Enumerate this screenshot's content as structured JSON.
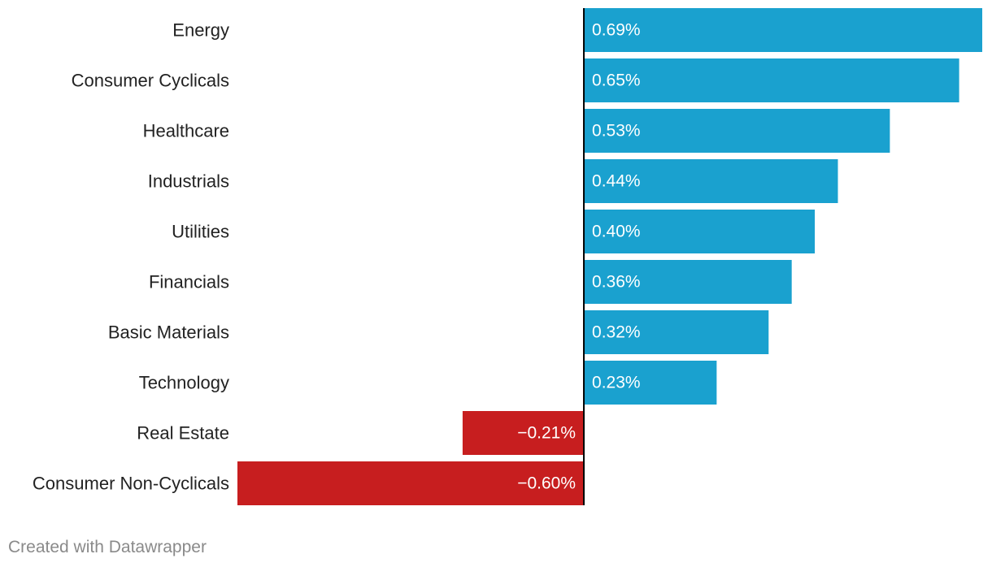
{
  "chart_data": {
    "type": "bar",
    "orientation": "horizontal",
    "categories": [
      "Energy",
      "Consumer Cyclicals",
      "Healthcare",
      "Industrials",
      "Utilities",
      "Financials",
      "Basic Materials",
      "Technology",
      "Real Estate",
      "Consumer Non-Cyclicals"
    ],
    "values": [
      0.69,
      0.65,
      0.53,
      0.44,
      0.4,
      0.36,
      0.32,
      0.23,
      -0.21,
      -0.6
    ],
    "value_labels": [
      "0.69%",
      "0.65%",
      "0.53%",
      "0.44%",
      "0.40%",
      "0.36%",
      "0.32%",
      "0.23%",
      "−0.21%",
      "−0.60%"
    ],
    "title": "",
    "xlabel": "",
    "ylabel": "",
    "xlim": [
      -0.6,
      0.69
    ],
    "grid": false,
    "legend": "none",
    "colors": {
      "positive": "#1aa1cf",
      "negative": "#c71e1f",
      "zero_line": "#000000",
      "category_text": "#222222",
      "bar_label_text": "#ffffff"
    }
  },
  "footer": {
    "credit": "Created with Datawrapper"
  }
}
